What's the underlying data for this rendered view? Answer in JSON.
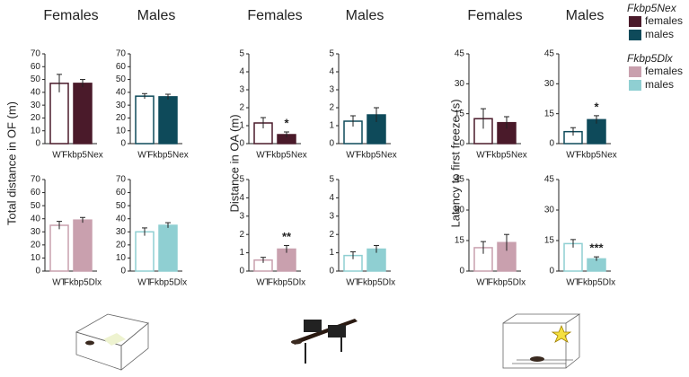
{
  "chart_data": [
    {
      "type": "bar",
      "title": "Females",
      "ylabel": "Total distance in OF (m)",
      "categories": [
        "WT",
        "Fkbp5Nex"
      ],
      "values": [
        47,
        47
      ],
      "errors": [
        7,
        3
      ],
      "color": "#4a1a2a",
      "ylim": [
        0,
        70
      ],
      "yticks": [
        0,
        10,
        20,
        30,
        40,
        50,
        60,
        70
      ]
    },
    {
      "type": "bar",
      "title": "Males",
      "categories": [
        "WT",
        "Fkbp5Nex"
      ],
      "values": [
        37,
        36.5
      ],
      "errors": [
        2,
        2
      ],
      "color": "#0e4a5a",
      "ylim": [
        0,
        70
      ],
      "yticks": [
        0,
        10,
        20,
        30,
        40,
        50,
        60,
        70
      ]
    },
    {
      "type": "bar",
      "categories": [
        "WT",
        "Fkbp5Dlx"
      ],
      "values": [
        35,
        39
      ],
      "errors": [
        3,
        2
      ],
      "color": "#c9a0ae",
      "ylim": [
        0,
        70
      ],
      "yticks": [
        0,
        10,
        20,
        30,
        40,
        50,
        60,
        70
      ]
    },
    {
      "type": "bar",
      "categories": [
        "WT",
        "Fkbp5Dlx"
      ],
      "values": [
        30,
        35
      ],
      "errors": [
        3,
        2
      ],
      "color": "#8fcfd2",
      "ylim": [
        0,
        70
      ],
      "yticks": [
        0,
        10,
        20,
        30,
        40,
        50,
        60,
        70
      ]
    },
    {
      "type": "bar",
      "title": "Females",
      "ylabel": "Distance in OA (m)",
      "categories": [
        "WT",
        "Fkbp5Nex"
      ],
      "values": [
        1.15,
        0.5
      ],
      "errors": [
        0.3,
        0.15
      ],
      "annotation": {
        "index": 1,
        "text": "*"
      },
      "color": "#4a1a2a",
      "ylim": [
        0,
        5
      ],
      "yticks": [
        0,
        1,
        2,
        3,
        4,
        5
      ]
    },
    {
      "type": "bar",
      "title": "Males",
      "categories": [
        "WT",
        "Fkbp5Nex"
      ],
      "values": [
        1.25,
        1.6
      ],
      "errors": [
        0.3,
        0.4
      ],
      "color": "#0e4a5a",
      "ylim": [
        0,
        5
      ],
      "yticks": [
        0,
        1,
        2,
        3,
        4,
        5
      ]
    },
    {
      "type": "bar",
      "categories": [
        "WT",
        "Fkbp5Dlx"
      ],
      "values": [
        0.6,
        1.2
      ],
      "errors": [
        0.15,
        0.2
      ],
      "annotation": {
        "index": 1,
        "text": "**"
      },
      "color": "#c9a0ae",
      "ylim": [
        0,
        5
      ],
      "yticks": [
        0,
        1,
        2,
        3,
        4,
        5
      ]
    },
    {
      "type": "bar",
      "categories": [
        "WT",
        "Fkbp5Dlx"
      ],
      "values": [
        0.85,
        1.2
      ],
      "errors": [
        0.2,
        0.2
      ],
      "color": "#8fcfd2",
      "ylim": [
        0,
        5
      ],
      "yticks": [
        0,
        1,
        2,
        3,
        4,
        5
      ]
    },
    {
      "type": "bar",
      "title": "Females",
      "ylabel": "Latency to first freeze (s)",
      "categories": [
        "WT",
        "Fkbp5Nex"
      ],
      "values": [
        12.5,
        10.5
      ],
      "errors": [
        5,
        3
      ],
      "color": "#4a1a2a",
      "ylim": [
        0,
        45
      ],
      "yticks": [
        0,
        15,
        30,
        45
      ]
    },
    {
      "type": "bar",
      "title": "Males",
      "categories": [
        "WT",
        "Fkbp5Nex"
      ],
      "values": [
        6,
        12
      ],
      "errors": [
        2,
        2
      ],
      "annotation": {
        "index": 1,
        "text": "*"
      },
      "color": "#0e4a5a",
      "ylim": [
        0,
        45
      ],
      "yticks": [
        0,
        15,
        30,
        45
      ]
    },
    {
      "type": "bar",
      "categories": [
        "WT",
        "Fkbp5Dlx"
      ],
      "values": [
        11.5,
        14
      ],
      "errors": [
        3,
        4
      ],
      "color": "#c9a0ae",
      "ylim": [
        0,
        45
      ],
      "yticks": [
        0,
        15,
        30,
        45
      ]
    },
    {
      "type": "bar",
      "categories": [
        "WT",
        "Fkbp5Dlx"
      ],
      "values": [
        13.5,
        6
      ],
      "errors": [
        2,
        1
      ],
      "annotation": {
        "index": 1,
        "text": "***"
      },
      "color": "#8fcfd2",
      "ylim": [
        0,
        45
      ],
      "yticks": [
        0,
        15,
        30,
        45
      ]
    }
  ],
  "legend": [
    {
      "title": "Fkbp5Nex",
      "items": [
        {
          "label": "females",
          "color": "#4a1a2a"
        },
        {
          "label": "males",
          "color": "#0e4a5a"
        }
      ]
    },
    {
      "title": "Fkbp5Dlx",
      "items": [
        {
          "label": "females",
          "color": "#c9a0ae"
        },
        {
          "label": "males",
          "color": "#8fcfd2"
        }
      ]
    }
  ]
}
